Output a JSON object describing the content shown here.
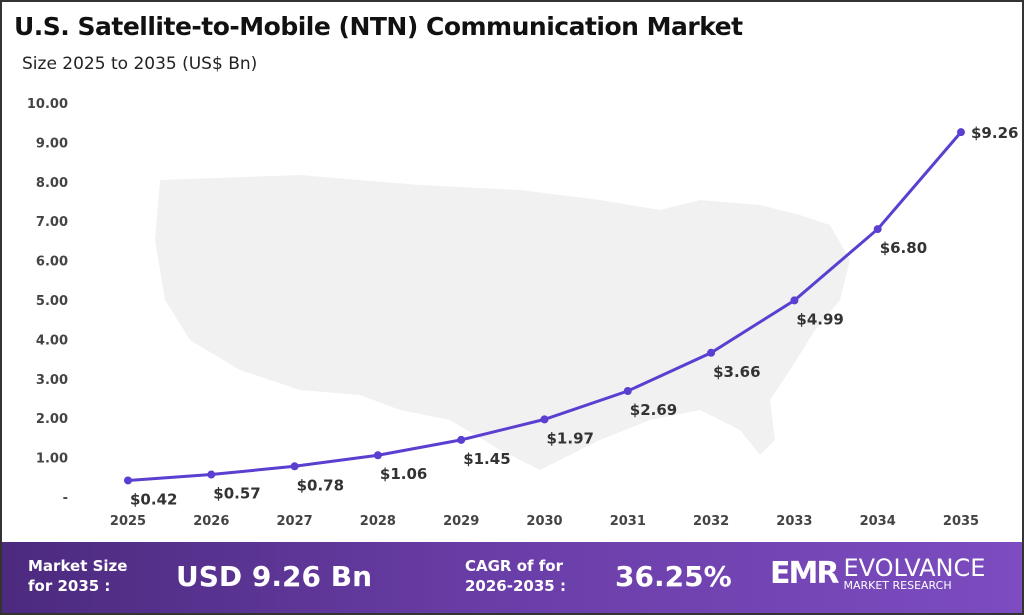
{
  "chart_data": {
    "type": "line",
    "title": "U.S. Satellite-to-Mobile (NTN) Communication Market",
    "subtitle": "Size 2025 to 2035 (US$ Bn)",
    "categories": [
      "2025",
      "2026",
      "2027",
      "2028",
      "2029",
      "2030",
      "2031",
      "2032",
      "2033",
      "2034",
      "2035"
    ],
    "values": [
      0.42,
      0.57,
      0.78,
      1.06,
      1.45,
      1.97,
      2.69,
      3.66,
      4.99,
      6.8,
      9.26
    ],
    "data_labels": [
      "$0.42",
      "$0.57",
      "$0.78",
      "$1.06",
      "$1.45",
      "$1.97",
      "$2.69",
      "$3.66",
      "$4.99",
      "$6.80",
      "$9.26"
    ],
    "y_ticks": [
      "-",
      "1.00",
      "2.00",
      "3.00",
      "4.00",
      "5.00",
      "6.00",
      "7.00",
      "8.00",
      "9.00",
      "10.00"
    ],
    "ylim": [
      0,
      10
    ],
    "grid": false,
    "line_color": "#5a3fd1",
    "background_map": "United States silhouette"
  },
  "banner": {
    "market_size_label": [
      "Market Size",
      "for 2035 :"
    ],
    "market_size_value": "USD 9.26 Bn",
    "cagr_label": [
      "CAGR of for",
      "2026-2035 :"
    ],
    "cagr_value": "36.25%",
    "logo": {
      "mark": "EMR",
      "name": "EVOLVANCE",
      "tagline": "MARKET RESEARCH"
    }
  }
}
